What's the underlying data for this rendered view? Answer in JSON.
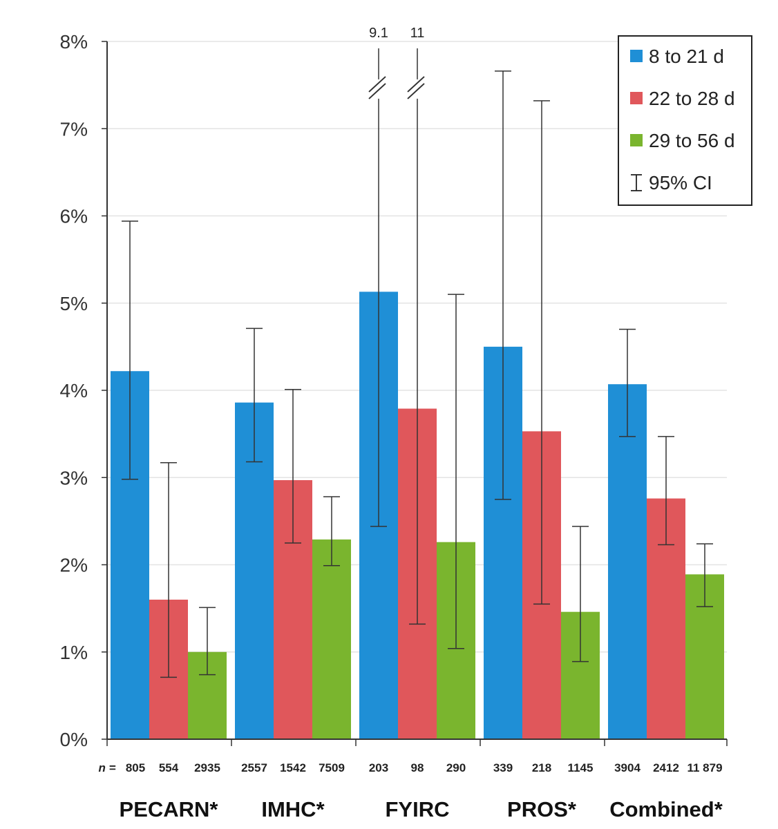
{
  "chart_data": {
    "type": "bar",
    "title": "",
    "xlabel": "",
    "ylabel": "",
    "ylim": [
      0,
      8
    ],
    "y_ticks": [
      "0%",
      "1%",
      "2%",
      "3%",
      "4%",
      "5%",
      "6%",
      "7%",
      "8%"
    ],
    "grid": true,
    "legend_position": "top-right",
    "categories": [
      "PECARN*",
      "IMHC*",
      "FYIRC",
      "PROS*",
      "Combined*"
    ],
    "n_prefix": "n =",
    "series": [
      {
        "name": "8 to 21 d",
        "color": "#1f8fd6",
        "values": [
          4.22,
          3.86,
          5.13,
          4.5,
          4.07
        ],
        "ci_low": [
          2.98,
          3.18,
          2.44,
          2.75,
          3.47
        ],
        "ci_high": [
          5.94,
          4.71,
          9.1,
          7.66,
          4.7
        ],
        "n": [
          "805",
          "2557",
          "203",
          "339",
          "3904"
        ]
      },
      {
        "name": "22 to 28 d",
        "color": "#e0575b",
        "values": [
          1.6,
          2.97,
          3.79,
          3.53,
          2.76
        ],
        "ci_low": [
          0.71,
          2.25,
          1.32,
          1.55,
          2.23
        ],
        "ci_high": [
          3.17,
          4.01,
          11,
          7.32,
          3.47
        ],
        "n": [
          "554",
          "1542",
          "98",
          "218",
          "2412"
        ]
      },
      {
        "name": "29 to 56 d",
        "color": "#7ab52e",
        "values": [
          1.0,
          2.29,
          2.26,
          1.46,
          1.89
        ],
        "ci_low": [
          0.74,
          1.99,
          1.04,
          0.89,
          1.52
        ],
        "ci_high": [
          1.51,
          2.78,
          5.1,
          2.44,
          2.24
        ],
        "n": [
          "2935",
          "7509",
          "290",
          "1145",
          "11 879"
        ]
      }
    ],
    "broken_ci_labels": [
      {
        "category": "FYIRC",
        "series": "8 to 21 d",
        "label": "9.1"
      },
      {
        "category": "FYIRC",
        "series": "22 to 28 d",
        "label": "11"
      }
    ],
    "legend": {
      "items": [
        "8 to 21 d",
        "22 to 28 d",
        "29 to 56 d"
      ],
      "ci_label": "95% CI"
    }
  }
}
